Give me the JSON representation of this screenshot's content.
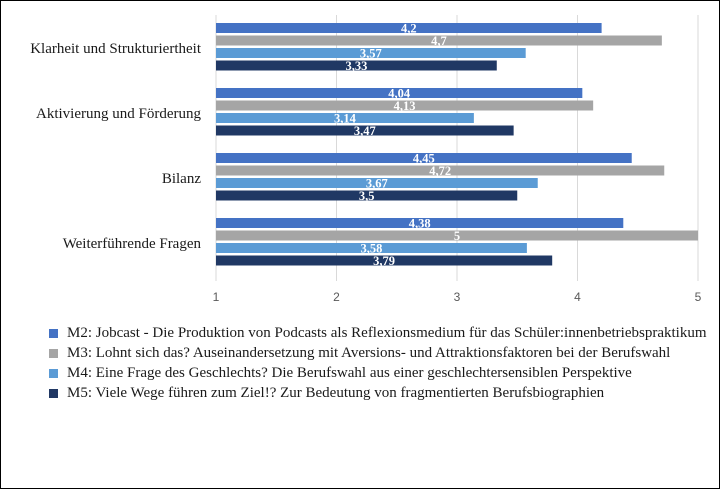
{
  "chart_data": {
    "type": "bar",
    "orientation": "horizontal",
    "categories": [
      "Klarheit und Strukturiertheit",
      "Aktivierung und Förderung",
      "Bilanz",
      "Weiterführende Fragen"
    ],
    "series": [
      {
        "name": "M2: Jobcast - Die Produktion von Podcasts als Reflexionsmedium für das Schüler:innenbetriebspraktikum",
        "color": "#4472c4",
        "values": [
          4.2,
          4.04,
          4.45,
          4.38
        ],
        "labels": [
          "4,2",
          "4,04",
          "4,45",
          "4,38"
        ]
      },
      {
        "name": "M3: Lohnt sich das? Auseinandersetzung mit Aversions- und Attraktionsfaktoren bei der Berufswahl",
        "color": "#a5a5a5",
        "values": [
          4.7,
          4.13,
          4.72,
          5
        ],
        "labels": [
          "4,7",
          "4,13",
          "4,72",
          "5"
        ]
      },
      {
        "name": "M4: Eine Frage des Geschlechts?  Die Berufswahl aus einer geschlechtersensiblen Perspektive",
        "color": "#5b9bd5",
        "values": [
          3.57,
          3.14,
          3.67,
          3.58
        ],
        "labels": [
          "3,57",
          "3,14",
          "3,67",
          "3,58"
        ]
      },
      {
        "name": "M5: Viele Wege führen zum Ziel!? Zur Bedeutung von fragmentierten Berufsbiographien",
        "color": "#203864",
        "values": [
          3.33,
          3.47,
          3.5,
          3.79
        ],
        "labels": [
          "3,33",
          "3,47",
          "3,5",
          "3,79"
        ]
      }
    ],
    "xlim": [
      1,
      5
    ],
    "ticks": [
      "1",
      "2",
      "3",
      "4",
      "5"
    ],
    "grid": true,
    "legend_position": "bottom"
  }
}
